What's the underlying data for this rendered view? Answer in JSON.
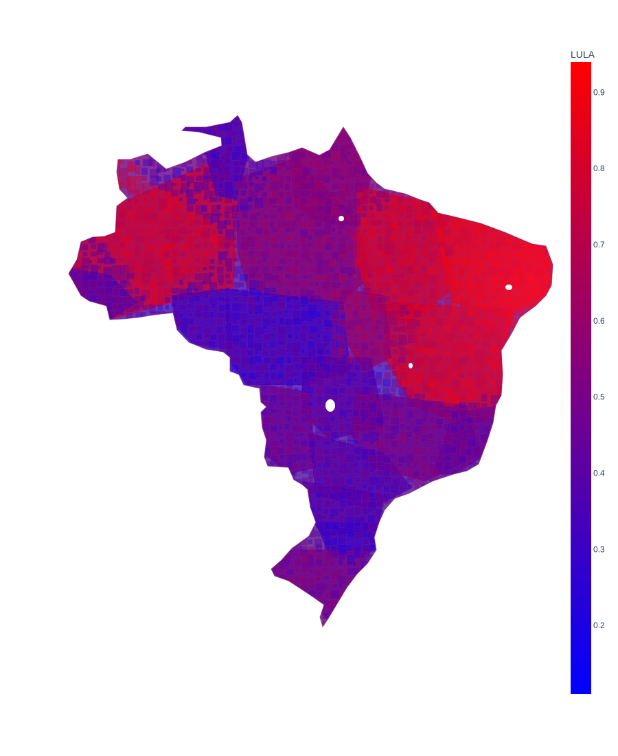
{
  "colorbar": {
    "title": "LULA",
    "range": [
      0.11,
      0.94
    ],
    "tickvals": [
      0.2,
      0.3,
      0.4,
      0.5,
      0.6,
      0.7,
      0.8,
      0.9
    ],
    "ticklabels": [
      "0.2",
      "0.3",
      "0.4",
      "0.5",
      "0.6",
      "0.7",
      "0.8",
      "0.9"
    ],
    "colors": [
      "#0000ff",
      "#ff0000"
    ]
  },
  "map": {
    "region": "Brazil",
    "fill_opacity": 0.8,
    "regional_vote_share": [
      {
        "region": "north-amazonas",
        "value": 0.78
      },
      {
        "region": "roraima",
        "value": 0.35
      },
      {
        "region": "amapa",
        "value": 0.55
      },
      {
        "region": "para",
        "value": 0.55
      },
      {
        "region": "acre",
        "value": 0.4
      },
      {
        "region": "rondonia",
        "value": 0.35
      },
      {
        "region": "mato-grosso",
        "value": 0.33
      },
      {
        "region": "maranhao-piaui",
        "value": 0.8
      },
      {
        "region": "ceara-rn-pb-pe",
        "value": 0.9
      },
      {
        "region": "bahia",
        "value": 0.82
      },
      {
        "region": "tocantins",
        "value": 0.6
      },
      {
        "region": "goias",
        "value": 0.4
      },
      {
        "region": "mato-grosso-do-sul",
        "value": 0.45
      },
      {
        "region": "minas-gerais",
        "value": 0.48
      },
      {
        "region": "espirito-santo-rio",
        "value": 0.45
      },
      {
        "region": "sao-paulo",
        "value": 0.38
      },
      {
        "region": "parana",
        "value": 0.36
      },
      {
        "region": "santa-catarina",
        "value": 0.3
      },
      {
        "region": "rio-grande-do-sul",
        "value": 0.48
      }
    ]
  }
}
